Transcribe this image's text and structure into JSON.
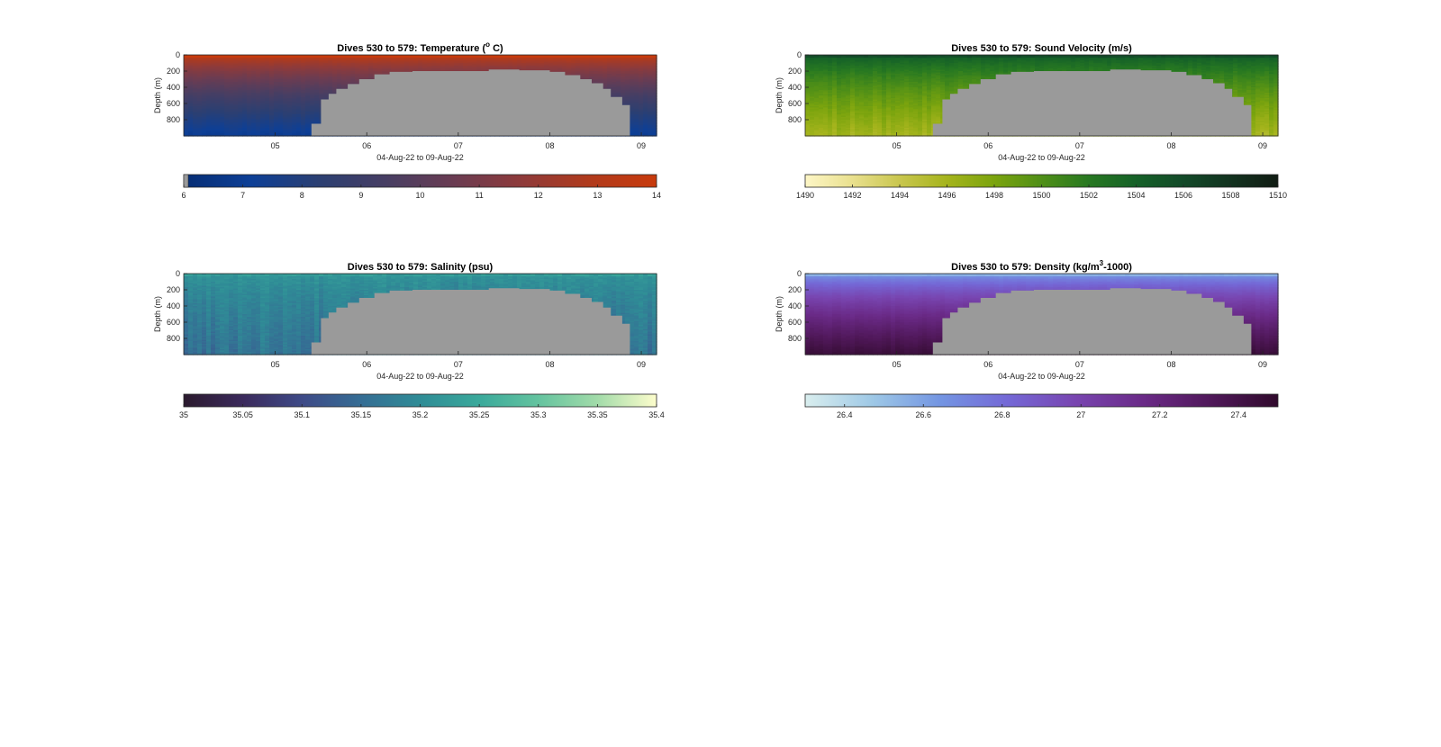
{
  "figure": {
    "background": "#ffffff",
    "mask_color": "#9a9a9a"
  },
  "chart_data": [
    {
      "type": "heatmap",
      "id": "temperature",
      "title": "Dives 530 to 579: Temperature (",
      "title_sup": "o",
      "title_end": " C)",
      "xlabel": "04-Aug-22 to 09-Aug-22",
      "ylabel": "Depth (m)",
      "xlim": [
        "2022-08-04T00:00",
        "2022-08-09T04:00"
      ],
      "x_ticks": [
        "05",
        "06",
        "07",
        "08",
        "09"
      ],
      "ylim": [
        0,
        1000
      ],
      "y_ticks": [
        0,
        200,
        400,
        600,
        800
      ],
      "y_reversed": true,
      "colorbar": {
        "min": 6,
        "max": 14,
        "ticks": [
          "6",
          "7",
          "8",
          "9",
          "10",
          "11",
          "12",
          "13",
          "14"
        ],
        "colors": [
          "#062d74",
          "#0d3f96",
          "#2b3f72",
          "#473e63",
          "#6a3c52",
          "#8e3a3a",
          "#b03a1c",
          "#c83a0c"
        ]
      },
      "surface_value": 14.0,
      "bottom_value": 7.0,
      "noise": 0.25
    },
    {
      "type": "heatmap",
      "id": "sound-velocity",
      "title": "Dives 530 to 579: Sound Velocity (m/s)",
      "title_sup": "",
      "title_end": "",
      "xlabel": "04-Aug-22 to 09-Aug-22",
      "ylabel": "Depth (m)",
      "xlim": [
        "2022-08-04T00:00",
        "2022-08-09T04:00"
      ],
      "x_ticks": [
        "05",
        "06",
        "07",
        "08",
        "09"
      ],
      "ylim": [
        0,
        1000
      ],
      "y_ticks": [
        0,
        200,
        400,
        600,
        800
      ],
      "y_reversed": true,
      "colorbar": {
        "min": 1490,
        "max": 1510,
        "ticks": [
          "1490",
          "1492",
          "1494",
          "1496",
          "1498",
          "1500",
          "1502",
          "1504",
          "1506",
          "1508",
          "1510"
        ],
        "colors": [
          "#fdf6c6",
          "#e9e08e",
          "#c9c64e",
          "#a5b41c",
          "#7ba40e",
          "#4f8f17",
          "#277821",
          "#156128",
          "#134a29",
          "#12321f",
          "#111c13"
        ]
      },
      "surface_value": 1505.5,
      "bottom_value": 1496.0,
      "noise": 1.0
    },
    {
      "type": "heatmap",
      "id": "salinity",
      "title": "Dives 530 to 579: Salinity (psu)",
      "title_sup": "",
      "title_end": "",
      "xlabel": "04-Aug-22 to 09-Aug-22",
      "ylabel": "Depth (m)",
      "xlim": [
        "2022-08-04T00:00",
        "2022-08-09T04:00"
      ],
      "x_ticks": [
        "05",
        "06",
        "07",
        "08",
        "09"
      ],
      "ylim": [
        0,
        1000
      ],
      "y_ticks": [
        0,
        200,
        400,
        600,
        800
      ],
      "y_reversed": true,
      "colorbar": {
        "min": 35,
        "max": 35.4,
        "ticks": [
          "35",
          "35.05",
          "35.1",
          "35.15",
          "35.2",
          "35.25",
          "35.3",
          "35.35",
          "35.4"
        ],
        "colors": [
          "#2b1a2e",
          "#3b2a5c",
          "#3e4a87",
          "#356d94",
          "#2f8c96",
          "#3aa99b",
          "#64c39f",
          "#a2dba9",
          "#fdfdcc"
        ]
      },
      "surface_value": 35.22,
      "bottom_value": 35.16,
      "noise": 0.04
    },
    {
      "type": "heatmap",
      "id": "density",
      "title": "Dives 530 to 579: Density (kg/m",
      "title_sup": "3",
      "title_end": "-1000)",
      "xlabel": "04-Aug-22 to 09-Aug-22",
      "ylabel": "Depth (m)",
      "xlim": [
        "2022-08-04T00:00",
        "2022-08-09T04:00"
      ],
      "x_ticks": [
        "05",
        "06",
        "07",
        "08",
        "09"
      ],
      "ylim": [
        0,
        1000
      ],
      "y_ticks": [
        0,
        200,
        400,
        600,
        800
      ],
      "y_reversed": true,
      "colorbar": {
        "min": 26.3,
        "max": 27.5,
        "ticks": [
          "26.4",
          "26.6",
          "26.8",
          "27",
          "27.2",
          "27.4"
        ],
        "colors": [
          "#d9eeee",
          "#9ec8e6",
          "#7395e2",
          "#7468d6",
          "#7845b0",
          "#6a2a87",
          "#50185a",
          "#300a2c"
        ]
      },
      "surface_value": 26.55,
      "bottom_value": 27.45,
      "noise": 0.03
    }
  ],
  "bathymetry": {
    "times": [
      "2022-08-04T00:00",
      "2022-08-05T08:00",
      "2022-08-05T09:30",
      "2022-08-05T12:00",
      "2022-08-05T14:00",
      "2022-08-05T16:00",
      "2022-08-05T19:00",
      "2022-08-05T22:00",
      "2022-08-06T02:00",
      "2022-08-06T06:00",
      "2022-08-06T12:00",
      "2022-08-07T00:00",
      "2022-08-07T08:00",
      "2022-08-07T16:00",
      "2022-08-08T00:00",
      "2022-08-08T04:00",
      "2022-08-08T08:00",
      "2022-08-08T11:00",
      "2022-08-08T14:00",
      "2022-08-08T16:00",
      "2022-08-08T19:00",
      "2022-08-08T21:00",
      "2022-08-09T04:00"
    ],
    "depths_m": [
      1000,
      1000,
      850,
      550,
      480,
      420,
      360,
      300,
      240,
      210,
      200,
      200,
      180,
      190,
      210,
      250,
      300,
      350,
      420,
      520,
      620,
      1000,
      1000
    ]
  }
}
